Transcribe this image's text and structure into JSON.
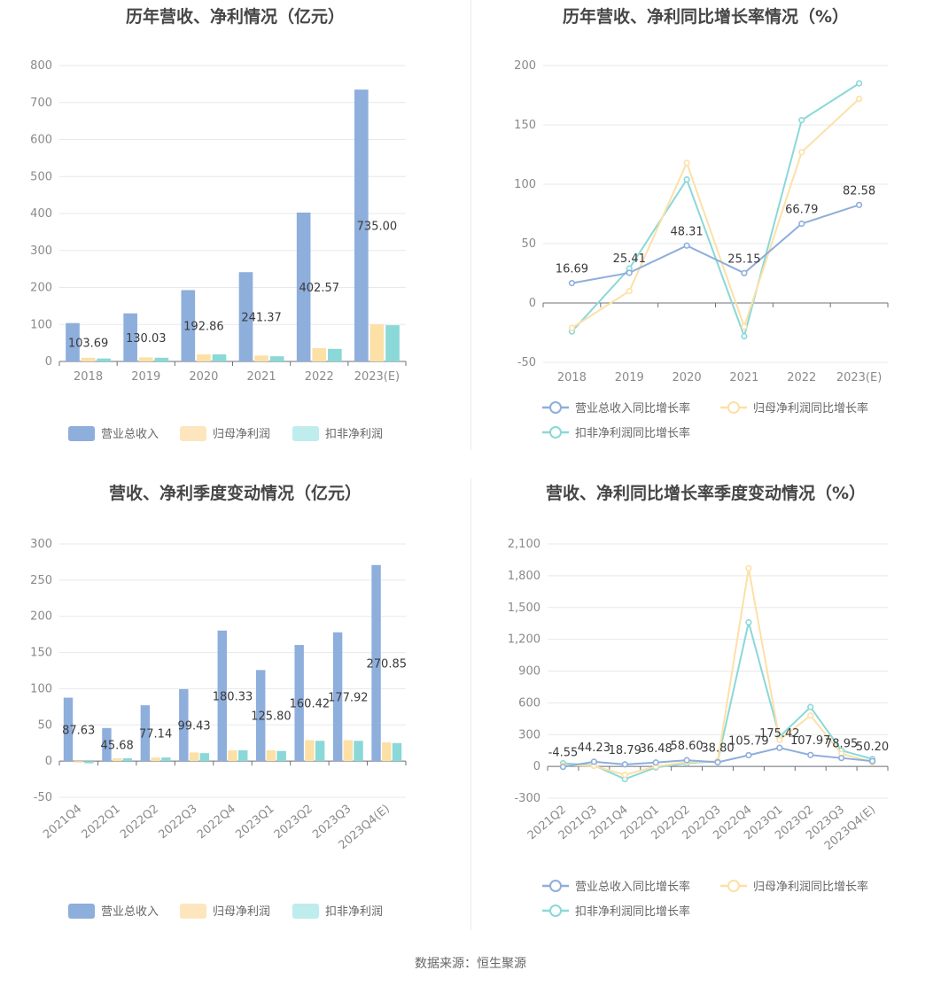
{
  "footer": "数据来源：恒生聚源",
  "colors": {
    "revenue": "#8eaedc",
    "net_profit": "#fde0a6",
    "deducted": "#8ad8d8",
    "legend_rev": "#8eaedc",
    "legend_np": "#fde6bd",
    "legend_dd": "#bfecec"
  },
  "chart_data": [
    {
      "id": "annual",
      "type": "bar",
      "title": "历年营收、净利情况（亿元）",
      "categories": [
        "2018",
        "2019",
        "2020",
        "2021",
        "2022",
        "2023(E)"
      ],
      "ylim": [
        0,
        800
      ],
      "yticks": [
        0,
        100,
        200,
        300,
        400,
        500,
        600,
        700,
        800
      ],
      "ytick_labels": [
        "0",
        "100",
        "200",
        "300",
        "400",
        "500",
        "600",
        "700",
        "800"
      ],
      "series": [
        {
          "name": "营业总收入",
          "values": [
            103.69,
            130.03,
            192.86,
            241.37,
            402.57,
            735.0
          ],
          "labels": [
            "103.69",
            "130.03",
            "192.86",
            "241.37",
            "402.57",
            "735.00"
          ]
        },
        {
          "name": "归母净利润",
          "values": [
            10,
            11,
            19,
            16,
            36,
            100
          ]
        },
        {
          "name": "扣非净利润",
          "values": [
            8,
            10,
            19,
            14,
            34,
            98
          ]
        }
      ],
      "legend_position": "bottom",
      "grid": true
    },
    {
      "id": "annual_growth",
      "type": "line",
      "title": "历年营收、净利同比增长率情况（%）",
      "categories": [
        "2018",
        "2019",
        "2020",
        "2021",
        "2022",
        "2023(E)"
      ],
      "ylim": [
        -50,
        200
      ],
      "yticks": [
        -50,
        0,
        50,
        100,
        150,
        200
      ],
      "ytick_labels": [
        "-50",
        "0",
        "50",
        "100",
        "150",
        "200"
      ],
      "series": [
        {
          "name": "营业总收入同比增长率",
          "values": [
            16.69,
            25.41,
            48.31,
            25.15,
            66.79,
            82.58
          ],
          "labels": [
            "16.69",
            "25.41",
            "48.31",
            "25.15",
            "66.79",
            "82.58"
          ]
        },
        {
          "name": "归母净利润同比增长率",
          "values": [
            -21,
            10,
            118,
            -20,
            127,
            172
          ]
        },
        {
          "name": "扣非净利润同比增长率",
          "values": [
            -24,
            29,
            104,
            -28,
            154,
            185
          ]
        }
      ],
      "legend_position": "bottom",
      "grid": true
    },
    {
      "id": "quarterly",
      "type": "bar",
      "title": "营收、净利季度变动情况（亿元）",
      "categories": [
        "2021Q4",
        "2022Q1",
        "2022Q2",
        "2022Q3",
        "2022Q4",
        "2023Q1",
        "2023Q2",
        "2023Q3",
        "2023Q4(E)"
      ],
      "ylim": [
        -50,
        300
      ],
      "yticks": [
        -50,
        0,
        50,
        100,
        150,
        200,
        250,
        300
      ],
      "ytick_labels": [
        "-50",
        "0",
        "50",
        "100",
        "150",
        "200",
        "250",
        "300"
      ],
      "series": [
        {
          "name": "营业总收入",
          "values": [
            87.63,
            45.68,
            77.14,
            99.43,
            180.33,
            125.8,
            160.42,
            177.92,
            270.85
          ],
          "labels": [
            "87.63",
            "45.68",
            "77.14",
            "99.43",
            "180.33",
            "125.80",
            "160.42",
            "177.92",
            "270.85"
          ]
        },
        {
          "name": "归母净利润",
          "values": [
            -2,
            4,
            5,
            12,
            15,
            15,
            29,
            29,
            26
          ]
        },
        {
          "name": "扣非净利润",
          "values": [
            -3,
            4,
            5,
            11,
            15,
            14,
            28,
            28,
            25
          ]
        }
      ],
      "legend_position": "bottom",
      "grid": true
    },
    {
      "id": "quarterly_growth",
      "type": "line",
      "title": "营收、净利同比增长率季度变动情况（%）",
      "categories": [
        "2021Q2",
        "2021Q3",
        "2021Q4",
        "2022Q1",
        "2022Q2",
        "2022Q3",
        "2022Q4",
        "2023Q1",
        "2023Q2",
        "2023Q3",
        "2023Q4(E)"
      ],
      "ylim": [
        -300,
        2100
      ],
      "yticks": [
        -300,
        0,
        300,
        600,
        900,
        1200,
        1500,
        1800,
        2100
      ],
      "ytick_labels": [
        "-300",
        "0",
        "300",
        "600",
        "900",
        "1,200",
        "1,500",
        "1,800",
        "2,100"
      ],
      "series": [
        {
          "name": "营业总收入同比增长率",
          "values": [
            -4.55,
            44.23,
            18.79,
            36.48,
            58.6,
            38.8,
            105.79,
            175.42,
            107.97,
            78.95,
            50.2
          ],
          "labels": [
            "-4.55",
            "44.23",
            "18.79",
            "36.48",
            "58.60",
            "38.80",
            "105.79",
            "175.42",
            "107.97",
            "78.95",
            "50.20"
          ]
        },
        {
          "name": "归母净利润同比增长率",
          "values": [
            10,
            5,
            -80,
            0,
            40,
            50,
            1870,
            250,
            480,
            120,
            40
          ]
        },
        {
          "name": "扣非净利润同比增长率",
          "values": [
            30,
            10,
            -120,
            -10,
            30,
            50,
            1360,
            280,
            560,
            150,
            70
          ]
        }
      ],
      "legend_position": "bottom",
      "grid": true
    }
  ]
}
